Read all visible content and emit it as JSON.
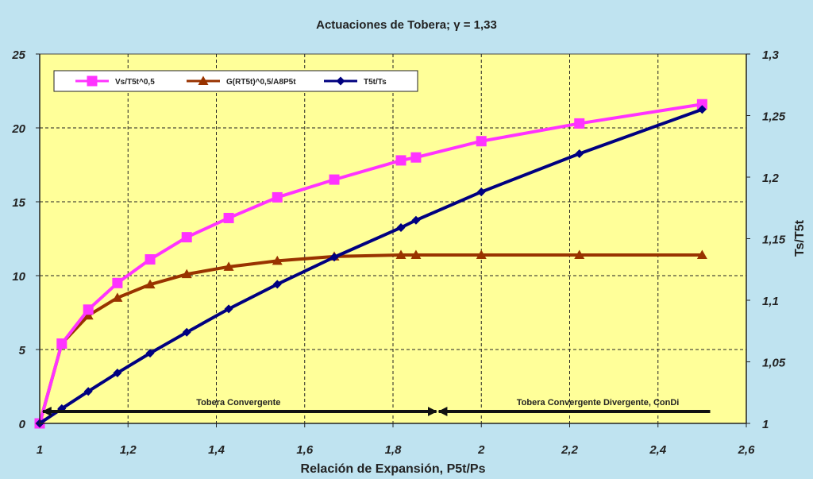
{
  "chart_data": {
    "type": "line",
    "title": "Actuaciones de Tobera; γ = 1,33",
    "xlabel": "Relación de Expansión, P5t/Ps",
    "ylabel": "",
    "y2label": "Ts/T5t",
    "xlim": [
      1,
      2.6
    ],
    "ylim": [
      0,
      25
    ],
    "y2lim": [
      1,
      1.3
    ],
    "x_ticks": [
      "1",
      "1,2",
      "1,4",
      "1,6",
      "1,8",
      "2",
      "2,2",
      "2,4",
      "2,6"
    ],
    "y_ticks": [
      "0",
      "5",
      "10",
      "15",
      "20",
      "25"
    ],
    "y2_ticks": [
      "1",
      "1,05",
      "1,1",
      "1,15",
      "1,2",
      "1,25",
      "1,3"
    ],
    "grid": true,
    "legend_position": "top-left",
    "series": [
      {
        "name": "Vs/T5t^0,5",
        "axis": "left",
        "color": "#ff33ff",
        "marker": "square",
        "x": [
          1.0,
          1.05,
          1.11,
          1.176,
          1.25,
          1.333,
          1.428,
          1.538,
          1.667,
          1.818,
          1.852,
          2.0,
          2.222,
          2.5
        ],
        "y": [
          0.0,
          5.4,
          7.7,
          9.5,
          11.1,
          12.6,
          13.9,
          15.3,
          16.5,
          17.8,
          18.0,
          19.1,
          20.3,
          21.6
        ]
      },
      {
        "name": "G(RT5t)^0,5/A8P5t",
        "axis": "left",
        "color": "#993300",
        "marker": "triangle",
        "x": [
          1.0,
          1.05,
          1.11,
          1.176,
          1.25,
          1.333,
          1.428,
          1.538,
          1.667,
          1.818,
          1.852,
          2.0,
          2.222,
          2.5
        ],
        "y": [
          0.0,
          5.4,
          7.3,
          8.5,
          9.4,
          10.1,
          10.6,
          11.0,
          11.3,
          11.4,
          11.4,
          11.4,
          11.4,
          11.4
        ]
      },
      {
        "name": "T5t/Ts",
        "axis": "right",
        "color": "#000080",
        "marker": "diamond",
        "x": [
          1.0,
          1.05,
          1.11,
          1.176,
          1.25,
          1.333,
          1.428,
          1.538,
          1.667,
          1.818,
          1.852,
          2.0,
          2.222,
          2.5
        ],
        "y": [
          1.0,
          1.012,
          1.026,
          1.041,
          1.057,
          1.074,
          1.093,
          1.113,
          1.135,
          1.159,
          1.165,
          1.188,
          1.219,
          1.255
        ]
      }
    ],
    "annotations": [
      {
        "text": "Tobera Convergente",
        "x_from": 1.0,
        "x_to": 1.9
      },
      {
        "text": "Tobera Convergente Divergente, ConDi",
        "x_from": 1.9,
        "x_to": 2.52
      }
    ],
    "colors": {
      "background": "#bfe3f0",
      "plot_area": "#ffff99",
      "legend_background": "#ffffff"
    }
  }
}
